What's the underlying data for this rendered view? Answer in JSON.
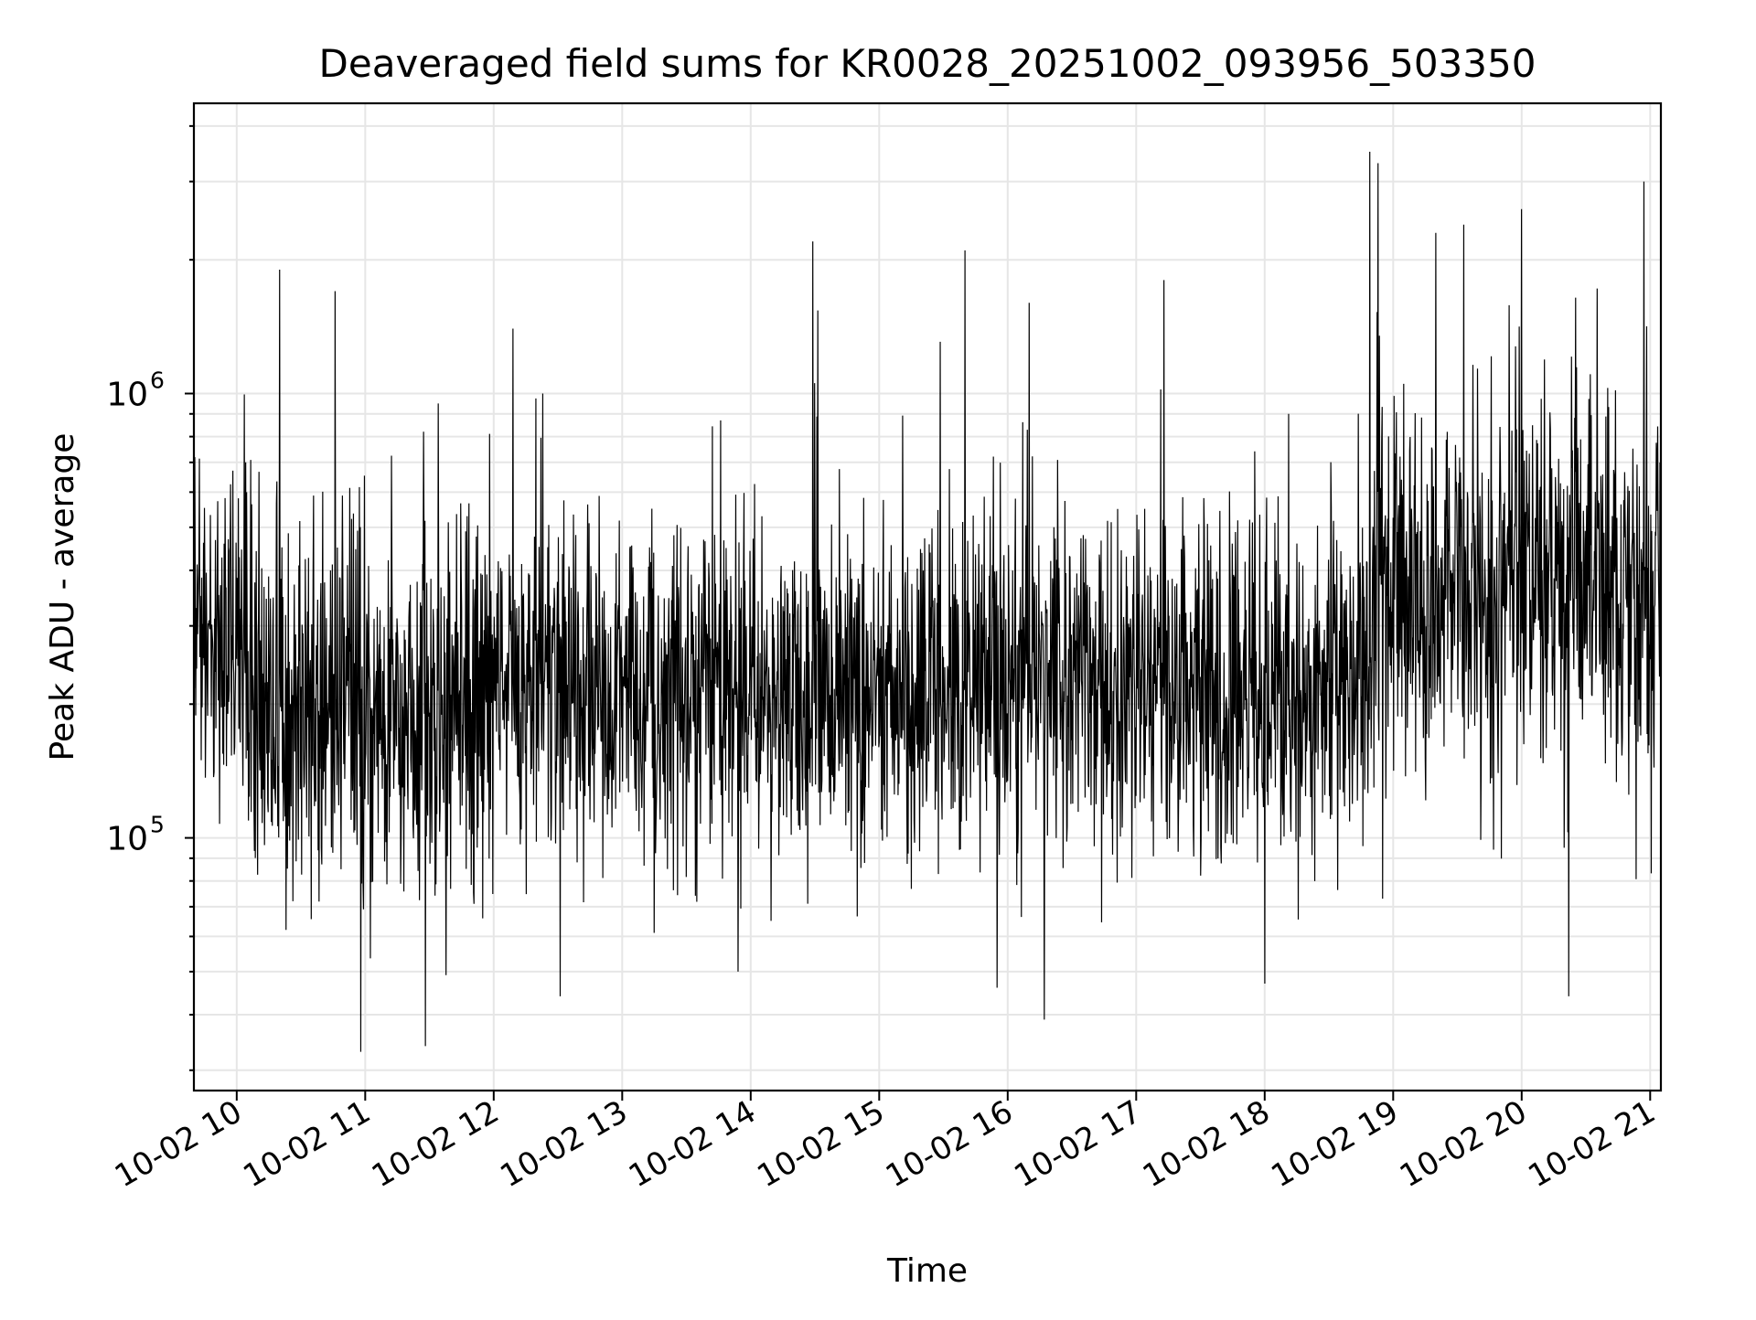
{
  "chart_data": {
    "type": "line",
    "title": "Deaveraged field sums for KR0028_20251002_093956_503350",
    "xlabel": "Time",
    "ylabel": "Peak ADU - average",
    "yscale": "log",
    "grid": true,
    "legend": "none",
    "line_color": "#000000",
    "x_tick_labels": [
      "10-02 10",
      "10-02 11",
      "10-02 12",
      "10-02 13",
      "10-02 14",
      "10-02 15",
      "10-02 16",
      "10-02 17",
      "10-02 18",
      "10-02 19",
      "10-02 20",
      "10-02 21"
    ],
    "y_tick_labels": [
      {
        "base": "10",
        "exp": "5",
        "value": 100000
      },
      {
        "base": "10",
        "exp": "6",
        "value": 1000000
      }
    ],
    "xlim": [
      "2025-10-02T09:40",
      "2025-10-02T21:05"
    ],
    "ylim": [
      27000,
      4500000
    ],
    "series": [
      {
        "segments": [
          {
            "start": "2025-10-02T09:40",
            "end": "2025-10-02T10:05",
            "median": 280000,
            "spread": 0.6
          },
          {
            "start": "2025-10-02T10:05",
            "end": "2025-10-02T12:00",
            "median": 190000,
            "spread": 0.65
          },
          {
            "start": "2025-10-02T12:00",
            "end": "2025-10-02T18:50",
            "median": 215000,
            "spread": 0.6
          },
          {
            "start": "2025-10-02T18:50",
            "end": "2025-10-02T21:05",
            "median": 360000,
            "spread": 0.7
          }
        ],
        "spikes": [
          {
            "t": "2025-10-02T10:20",
            "v": 1900000
          },
          {
            "t": "2025-10-02T10:46",
            "v": 1700000
          },
          {
            "t": "2025-10-02T11:34",
            "v": 950000
          },
          {
            "t": "2025-10-02T12:09",
            "v": 1400000
          },
          {
            "t": "2025-10-02T12:23",
            "v": 1000000
          },
          {
            "t": "2025-10-02T13:46",
            "v": 870000
          },
          {
            "t": "2025-10-02T14:29",
            "v": 2200000
          },
          {
            "t": "2025-10-02T15:40",
            "v": 2100000
          },
          {
            "t": "2025-10-02T16:10",
            "v": 1600000
          },
          {
            "t": "2025-10-02T17:13",
            "v": 1800000
          },
          {
            "t": "2025-10-02T18:49",
            "v": 3500000
          },
          {
            "t": "2025-10-02T18:53",
            "v": 3300000
          },
          {
            "t": "2025-10-02T19:20",
            "v": 2300000
          },
          {
            "t": "2025-10-02T19:33",
            "v": 2400000
          },
          {
            "t": "2025-10-02T20:00",
            "v": 2600000
          },
          {
            "t": "2025-10-02T20:57",
            "v": 3000000
          }
        ],
        "dips": [
          {
            "t": "2025-10-02T10:58",
            "v": 33000
          },
          {
            "t": "2025-10-02T11:28",
            "v": 34000
          },
          {
            "t": "2025-10-02T12:31",
            "v": 44000
          },
          {
            "t": "2025-10-02T13:54",
            "v": 50000
          },
          {
            "t": "2025-10-02T15:55",
            "v": 46000
          },
          {
            "t": "2025-10-02T16:17",
            "v": 39000
          },
          {
            "t": "2025-10-02T18:00",
            "v": 47000
          },
          {
            "t": "2025-10-02T20:22",
            "v": 44000
          }
        ]
      }
    ]
  }
}
